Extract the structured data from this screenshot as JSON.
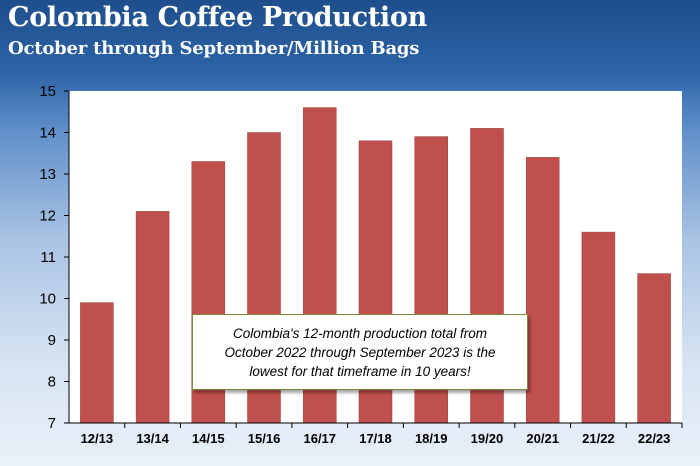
{
  "header": {
    "title": "Colombia Coffee Production",
    "subtitle": "October through September/Million Bags"
  },
  "callout": {
    "line1": "Colombia's 12-month production total from",
    "line2": "October 2022 through September 2023 is the",
    "line3": "lowest for that timeframe in 10 years!"
  },
  "colors": {
    "bar": "#c0504d",
    "bar_border": "#9b3d3a",
    "plot_background": "#ffffff",
    "header_background": "#1f4e8c"
  },
  "chart_data": {
    "type": "bar",
    "title": "Colombia Coffee Production",
    "subtitle": "October through September/Million Bags",
    "xlabel": "",
    "ylabel": "",
    "categories": [
      "12/13",
      "13/14",
      "14/15",
      "15/16",
      "16/17",
      "17/18",
      "18/19",
      "19/20",
      "20/21",
      "21/22",
      "22/23"
    ],
    "series": [
      {
        "values": [
          9.9,
          12.1,
          13.3,
          14.0,
          14.6,
          13.8,
          13.9,
          14.1,
          13.4,
          11.6,
          10.6
        ]
      }
    ],
    "ylim": [
      7,
      15
    ],
    "yticks": [
      7,
      8,
      9,
      10,
      11,
      12,
      13,
      14,
      15
    ],
    "grid": false,
    "legend": "none"
  }
}
